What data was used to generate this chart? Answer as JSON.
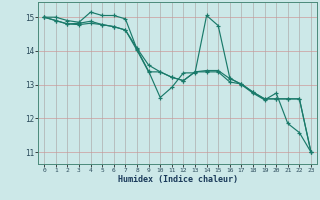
{
  "xlabel": "Humidex (Indice chaleur)",
  "background_color": "#cce8e8",
  "grid_color_major": "#aacccc",
  "grid_color_minor": "#ddeedd",
  "line_color": "#1a7a6a",
  "xlim": [
    -0.5,
    23.5
  ],
  "ylim": [
    10.65,
    15.45
  ],
  "yticks": [
    11,
    12,
    13,
    14,
    15
  ],
  "xticks": [
    0,
    1,
    2,
    3,
    4,
    5,
    6,
    7,
    8,
    9,
    10,
    11,
    12,
    13,
    14,
    15,
    16,
    17,
    18,
    19,
    20,
    21,
    22,
    23
  ],
  "series": [
    [
      15.0,
      15.0,
      14.9,
      14.85,
      15.15,
      15.05,
      15.05,
      14.95,
      14.05,
      13.4,
      12.62,
      12.92,
      13.35,
      13.35,
      15.05,
      14.75,
      13.2,
      13.0,
      12.75,
      12.55,
      12.75,
      11.85,
      11.58,
      11.0
    ],
    [
      15.0,
      14.9,
      14.8,
      14.78,
      14.82,
      14.78,
      14.72,
      14.62,
      14.08,
      13.58,
      13.38,
      13.22,
      13.12,
      13.38,
      13.38,
      13.38,
      13.08,
      13.02,
      12.78,
      12.58,
      12.58,
      12.58,
      12.58,
      11.0
    ],
    [
      15.0,
      14.9,
      14.8,
      14.82,
      14.88,
      14.78,
      14.72,
      14.62,
      14.02,
      13.38,
      13.38,
      13.22,
      13.12,
      13.38,
      13.42,
      13.42,
      13.18,
      13.02,
      12.78,
      12.58,
      12.58,
      12.58,
      12.58,
      11.0
    ]
  ]
}
